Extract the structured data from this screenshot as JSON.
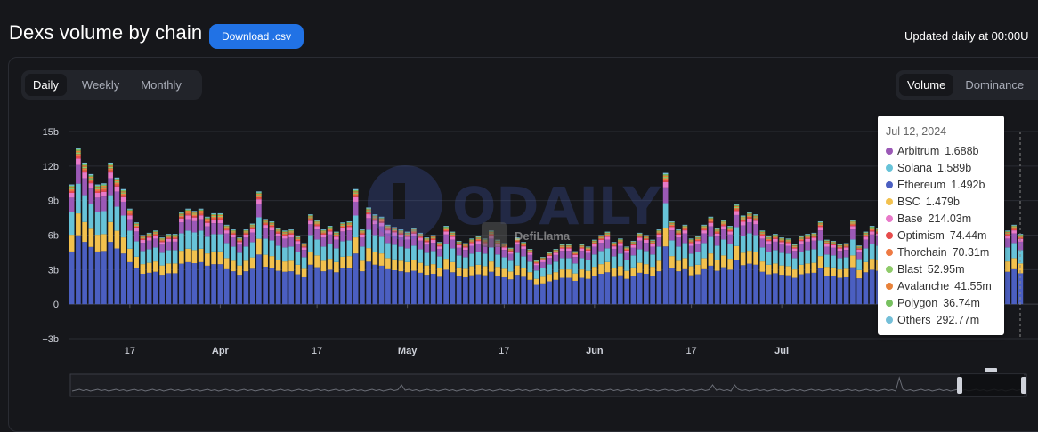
{
  "header": {
    "title": "Dexs volume by chain",
    "download_label": "Download .csv",
    "updated_text": "Updated daily at 00:00U"
  },
  "period_toggle": {
    "options": [
      "Daily",
      "Weekly",
      "Monthly"
    ],
    "selected": "Daily"
  },
  "mode_toggle": {
    "options": [
      "Volume",
      "Dominance"
    ],
    "selected": "Volume"
  },
  "watermarks": {
    "odaily": "ODAILY",
    "defillama": "DefiLlama"
  },
  "colors": {
    "Arbitrum": "#9b59b6",
    "Solana": "#67c3d8",
    "Ethereum": "#4b5fc1",
    "BSC": "#f2c14e",
    "Base": "#e879c9",
    "Optimism": "#e74c4c",
    "Thorchain": "#ee7a43",
    "Blast": "#8fcb6a",
    "Avalanche": "#e8823a",
    "Polygon": "#78c160",
    "Others": "#74bfd8"
  },
  "tooltip": {
    "date": "Jul 12, 2024",
    "rows": [
      {
        "name": "Arbitrum",
        "value": "1.688b"
      },
      {
        "name": "Solana",
        "value": "1.589b"
      },
      {
        "name": "Ethereum",
        "value": "1.492b"
      },
      {
        "name": "BSC",
        "value": "1.479b"
      },
      {
        "name": "Base",
        "value": "214.03m"
      },
      {
        "name": "Optimism",
        "value": "74.44m"
      },
      {
        "name": "Thorchain",
        "value": "70.31m"
      },
      {
        "name": "Blast",
        "value": "52.95m"
      },
      {
        "name": "Avalanche",
        "value": "41.55m"
      },
      {
        "name": "Polygon",
        "value": "36.74m"
      },
      {
        "name": "Others",
        "value": "292.77m"
      }
    ]
  },
  "chart_data": {
    "type": "bar",
    "stacked": true,
    "y_ticks": [
      "15b",
      "12b",
      "9b",
      "6b",
      "3b",
      "0",
      "−3b"
    ],
    "ylim": [
      -3,
      15
    ],
    "y_unit": "b",
    "x_tick_labels": [
      "17",
      "Apr",
      "17",
      "May",
      "17",
      "Jun",
      "17",
      "Jul"
    ],
    "x_tick_indices": [
      9,
      23,
      38,
      52,
      67,
      81,
      96,
      110
    ],
    "grid": true,
    "series_order": [
      "Ethereum",
      "BSC",
      "Solana",
      "Arbitrum",
      "Base",
      "Optimism",
      "Thorchain",
      "Blast",
      "Avalanche",
      "Polygon",
      "Others"
    ],
    "totals": [
      10.4,
      13.6,
      12.3,
      11.3,
      10.4,
      10.5,
      12.3,
      11.0,
      10.0,
      8.3,
      7.1,
      6.0,
      6.2,
      6.4,
      5.8,
      6.1,
      6.1,
      8.0,
      8.3,
      8.1,
      8.3,
      7.6,
      7.9,
      7.9,
      6.9,
      6.5,
      5.8,
      6.5,
      7.0,
      9.8,
      7.4,
      7.2,
      6.6,
      6.4,
      6.5,
      5.9,
      5.3,
      7.8,
      7.3,
      6.5,
      6.8,
      6.3,
      7.1,
      7.2,
      10.0,
      6.5,
      8.4,
      7.8,
      7.6,
      6.9,
      6.7,
      6.5,
      6.3,
      6.6,
      6.2,
      5.8,
      6.0,
      5.4,
      6.8,
      6.3,
      5.5,
      5.3,
      5.7,
      5.9,
      5.7,
      6.4,
      5.6,
      5.3,
      4.9,
      5.8,
      5.4,
      4.8,
      3.8,
      4.1,
      4.5,
      4.8,
      5.2,
      5.2,
      4.6,
      5.2,
      5.0,
      5.6,
      6.0,
      6.3,
      5.4,
      5.7,
      5.0,
      5.5,
      6.2,
      6.0,
      5.6,
      6.5,
      11.4,
      7.2,
      6.5,
      6.9,
      5.7,
      5.9,
      6.9,
      7.6,
      6.6,
      7.3,
      6.8,
      8.7,
      7.7,
      8.0,
      7.8,
      6.4,
      5.9,
      6.1,
      5.8,
      5.7,
      5.2,
      5.9,
      6.1,
      6.2,
      7.2,
      5.6,
      5.5,
      5.2,
      5.3,
      7.3,
      5.1,
      6.3,
      6.8,
      6.6,
      6.6,
      5.6,
      4.9,
      4.7,
      4.5,
      5.7,
      5.7,
      5.1,
      5.9,
      4.7,
      5.8,
      4.9,
      3.8,
      3.8,
      5.6,
      5.6,
      4.7,
      5.4,
      5.3,
      6.4,
      6.9,
      6.1
    ],
    "shares": {
      "Ethereum": 0.44,
      "BSC": 0.14,
      "Solana": 0.19,
      "Arbitrum": 0.12,
      "Base": 0.04,
      "Optimism": 0.015,
      "Thorchain": 0.015,
      "Blast": 0.01,
      "Avalanche": 0.01,
      "Polygon": 0.01,
      "Others": 0.01
    },
    "highlighted_date": "Jul 12, 2024"
  }
}
